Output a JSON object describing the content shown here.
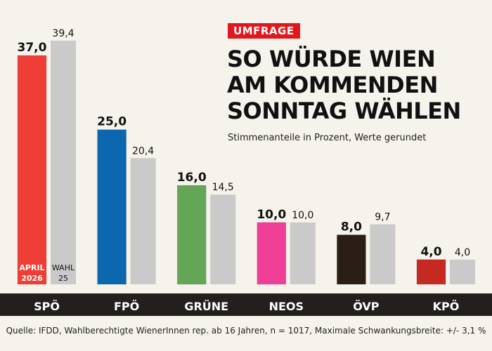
{
  "header": {
    "badge": "UMFRAGE",
    "title_lines": [
      "SO WÜRDE WIEN",
      "AM KOMMENDEN",
      "SONNTAG WÄHLEN"
    ],
    "subtitle": "Stimmenanteile in Prozent, Werte gerundet"
  },
  "footer": {
    "source": "Quelle: IFDD,  Wahlberechtigte WienerInnen rep. ab 16 Jahren, n = 1017, Maximale Schwankungsbreite: +/- 3,1 %"
  },
  "chart_data": {
    "type": "bar",
    "title": "SO WÜRDE WIEN AM KOMMENDEN SONNTAG WÄHLEN",
    "subtitle": "Stimmenanteile in Prozent, Werte gerundet",
    "xlabel": "",
    "ylabel": "",
    "ylim": [
      0,
      40
    ],
    "grid": false,
    "categories": [
      "SPÖ",
      "FPÖ",
      "GRÜNE",
      "NEOS",
      "ÖVP",
      "KPÖ"
    ],
    "series": [
      {
        "name": "APRIL 2026",
        "label_lines": [
          "APRIL",
          "2026"
        ],
        "values": [
          37.0,
          25.0,
          16.0,
          10.0,
          8.0,
          4.0
        ],
        "labels": [
          "37,0",
          "25,0",
          "16,0",
          "10,0",
          "8,0",
          "4,0"
        ],
        "colors": [
          "#ef3e36",
          "#0d67ae",
          "#63a756",
          "#ef3f97",
          "#2b1f15",
          "#c52a22"
        ]
      },
      {
        "name": "WAHL 25",
        "label_lines": [
          "WAHL",
          "25"
        ],
        "values": [
          39.4,
          20.4,
          14.5,
          10.0,
          9.7,
          4.0
        ],
        "labels": [
          "39,4",
          "20,4",
          "14,5",
          "10,0",
          "9,7",
          "4,0"
        ],
        "colors": [
          "#cbcaca",
          "#cbcaca",
          "#cbcaca",
          "#cbcaca",
          "#cbcaca",
          "#cbcaca"
        ]
      }
    ]
  }
}
